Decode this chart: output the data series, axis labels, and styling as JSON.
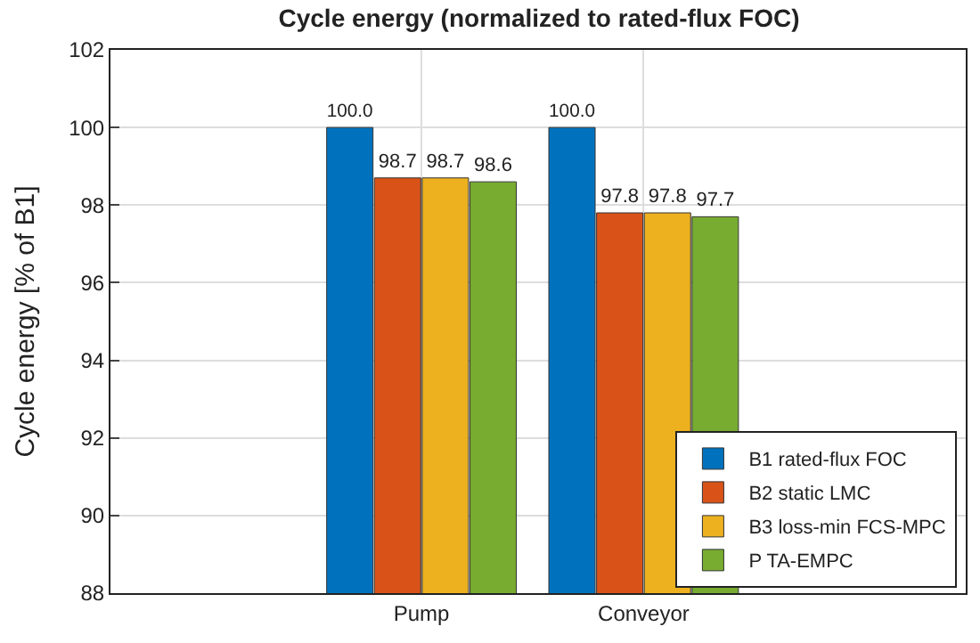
{
  "chart_data": {
    "type": "bar",
    "title": "Cycle energy (normalized to rated-flux FOC)",
    "ylabel": "Cycle energy [% of B1]",
    "categories": [
      "Pump",
      "Conveyor"
    ],
    "series": [
      {
        "name": "B1 rated-flux FOC",
        "color": "#0072bd",
        "values": [
          100.0,
          100.0
        ],
        "value_labels": [
          "100.0",
          "100.0"
        ]
      },
      {
        "name": "B2 static LMC",
        "color": "#d95319",
        "values": [
          98.7,
          97.8
        ],
        "value_labels": [
          "98.7",
          "97.8"
        ]
      },
      {
        "name": "B3 loss-min FCS-MPC",
        "color": "#edb120",
        "values": [
          98.7,
          97.8
        ],
        "value_labels": [
          "98.7",
          "97.8"
        ]
      },
      {
        "name": "P TA-EMPC",
        "color": "#77ac30",
        "values": [
          98.6,
          97.7
        ],
        "value_labels": [
          "98.6",
          "97.7"
        ]
      }
    ],
    "ylim": [
      88,
      102
    ],
    "yticks": [
      88,
      90,
      92,
      94,
      96,
      98,
      100,
      102
    ],
    "grid": true,
    "legend": "bottom right"
  }
}
